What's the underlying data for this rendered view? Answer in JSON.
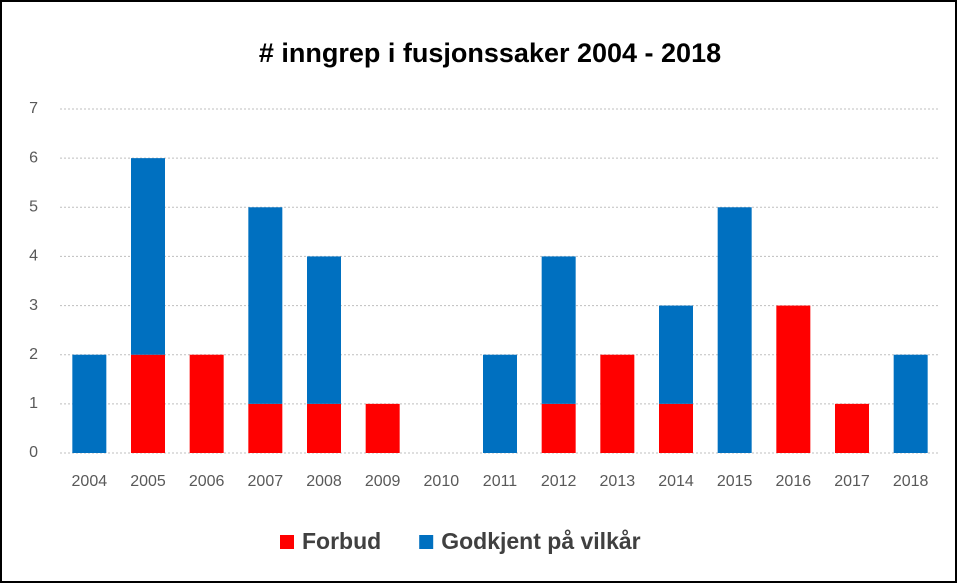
{
  "chart_data": {
    "type": "stacked_bar",
    "title": "# inngrep i fusjonssaker 2004 - 2018",
    "categories": [
      "2004",
      "2005",
      "2006",
      "2007",
      "2008",
      "2009",
      "2010",
      "2011",
      "2012",
      "2013",
      "2014",
      "2015",
      "2016",
      "2017",
      "2018"
    ],
    "series": [
      {
        "name": "Forbud",
        "color": "#ff0000",
        "values": [
          0,
          2,
          2,
          1,
          1,
          1,
          0,
          0,
          1,
          2,
          1,
          0,
          3,
          1,
          0
        ]
      },
      {
        "name": "Godkjent på vilkår",
        "color": "#0070c0",
        "values": [
          2,
          4,
          0,
          4,
          3,
          0,
          0,
          2,
          3,
          0,
          2,
          5,
          0,
          0,
          2
        ]
      }
    ],
    "ylim": [
      0,
      7
    ],
    "yticks": [
      0,
      1,
      2,
      3,
      4,
      5,
      6,
      7
    ],
    "grid": true,
    "legend": "bottom"
  }
}
